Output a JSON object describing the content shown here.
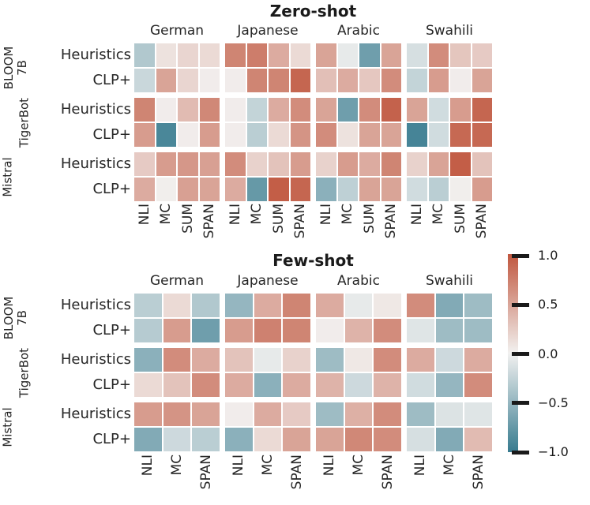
{
  "figure": {
    "background": "#ffffff",
    "text_color": "#262626"
  },
  "colormap": {
    "negative": "#377b8f",
    "zero": "#f2f1f0",
    "positive": "#c0563e"
  },
  "colorbar": {
    "min": -1.0,
    "max": 1.0,
    "tick_labels": [
      "1.0",
      "0.5",
      "0.0",
      "−0.5",
      "−1.0"
    ]
  },
  "chart_data": [
    {
      "type": "heatmap",
      "title": "Zero-shot",
      "column_groups": [
        "German",
        "Japanese",
        "Arabic",
        "Swahili"
      ],
      "columns_per_group": [
        "NLI",
        "MC",
        "SUM",
        "SPAN"
      ],
      "row_groups": [
        {
          "lines": [
            "BLOOM",
            "7B"
          ]
        },
        {
          "lines": [
            "TigerBot"
          ]
        },
        {
          "lines": [
            "Mistral"
          ]
        }
      ],
      "rows": [
        "Heuristics",
        "CLP+",
        "Heuristics",
        "CLP+",
        "Heuristics",
        "CLP+"
      ],
      "vmin": -1,
      "vmax": 1,
      "values": [
        [
          -0.35,
          0.1,
          0.18,
          0.15,
          0.7,
          0.75,
          0.45,
          0.15,
          0.5,
          -0.06,
          -0.7,
          0.5,
          -0.15,
          0.65,
          0.28,
          0.25
        ],
        [
          -0.22,
          0.5,
          0.18,
          0.03,
          0.03,
          0.7,
          0.7,
          0.9,
          0.32,
          0.45,
          0.27,
          0.65,
          -0.25,
          0.55,
          0.03,
          0.5
        ],
        [
          0.7,
          0.03,
          0.35,
          0.68,
          0.03,
          -0.25,
          0.45,
          0.65,
          0.5,
          -0.7,
          0.65,
          0.92,
          0.5,
          -0.18,
          0.55,
          0.9
        ],
        [
          0.55,
          -0.9,
          0.03,
          0.55,
          0.03,
          -0.3,
          0.15,
          0.6,
          0.65,
          0.1,
          0.5,
          0.5,
          -0.92,
          -0.18,
          0.88,
          0.88
        ],
        [
          0.25,
          0.55,
          0.58,
          0.52,
          0.65,
          0.2,
          0.3,
          0.55,
          0.2,
          0.55,
          0.45,
          0.7,
          0.2,
          0.5,
          0.95,
          0.3
        ],
        [
          0.45,
          0.02,
          0.52,
          0.5,
          0.45,
          -0.75,
          0.95,
          0.9,
          -0.55,
          -0.28,
          0.5,
          0.5,
          -0.18,
          -0.3,
          0.02,
          0.55
        ]
      ]
    },
    {
      "type": "heatmap",
      "title": "Few-shot",
      "column_groups": [
        "German",
        "Japanese",
        "Arabic",
        "Swahili"
      ],
      "columns_per_group": [
        "NLI",
        "MC",
        "SPAN"
      ],
      "row_groups": [
        {
          "lines": [
            "BLOOM",
            "7B"
          ]
        },
        {
          "lines": [
            "TigerBot"
          ]
        },
        {
          "lines": [
            "Mistral"
          ]
        }
      ],
      "rows": [
        "Heuristics",
        "CLP+",
        "Heuristics",
        "CLP+",
        "Heuristics",
        "CLP+"
      ],
      "vmin": -1,
      "vmax": 1,
      "values": [
        [
          -0.3,
          0.15,
          -0.35,
          -0.5,
          0.45,
          0.7,
          0.45,
          -0.06,
          0.06,
          0.65,
          -0.6,
          -0.45
        ],
        [
          -0.32,
          0.55,
          -0.7,
          0.55,
          0.72,
          0.7,
          0.03,
          0.4,
          0.65,
          -0.1,
          -0.45,
          -0.45
        ],
        [
          -0.55,
          0.65,
          0.45,
          0.3,
          -0.06,
          0.2,
          -0.45,
          0.06,
          0.65,
          0.45,
          -0.2,
          0.45
        ],
        [
          0.15,
          0.3,
          0.65,
          0.45,
          -0.55,
          0.45,
          0.4,
          -0.2,
          0.4,
          -0.18,
          -0.5,
          0.65
        ],
        [
          0.55,
          0.6,
          0.5,
          0.03,
          0.45,
          0.25,
          -0.45,
          0.42,
          0.65,
          -0.45,
          -0.12,
          -0.1
        ],
        [
          -0.6,
          -0.2,
          -0.3,
          -0.55,
          0.15,
          0.5,
          0.5,
          0.68,
          0.65,
          -0.15,
          -0.6,
          0.35
        ]
      ]
    }
  ]
}
